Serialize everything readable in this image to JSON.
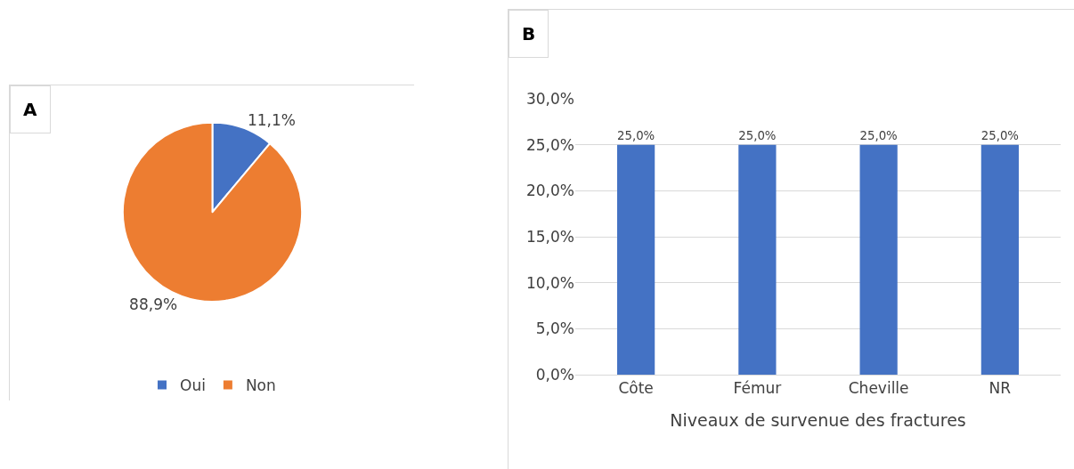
{
  "chart_data": [
    {
      "type": "pie",
      "title": "A",
      "categories": [
        "Oui",
        "Non"
      ],
      "values": [
        11.1,
        88.9
      ],
      "colors": [
        "#4472c4",
        "#ed7d31"
      ],
      "value_labels": [
        "11,1%",
        "88,9%"
      ],
      "legend": "bottom"
    },
    {
      "type": "bar",
      "title": "B",
      "xlabel": "Niveaux de survenue des fractures",
      "categories": [
        "Côte",
        "Fémur",
        "Cheville",
        "NR"
      ],
      "values": [
        25,
        25,
        25,
        25
      ],
      "color": "#4472c4",
      "value_labels": [
        "25,0%",
        "25,0%",
        "25,0%",
        "25,0%"
      ],
      "ylim": [
        0,
        30
      ],
      "yticks": [
        {
          "value": 0,
          "label": "0,0%"
        },
        {
          "value": 5,
          "label": "5,0%"
        },
        {
          "value": 10,
          "label": "10,0%"
        },
        {
          "value": 15,
          "label": "15,0%"
        },
        {
          "value": 20,
          "label": "20,0%"
        },
        {
          "value": 25,
          "label": "25,0%"
        },
        {
          "value": 30,
          "label": "30,0%"
        }
      ],
      "grid": "y",
      "legend": false
    }
  ]
}
